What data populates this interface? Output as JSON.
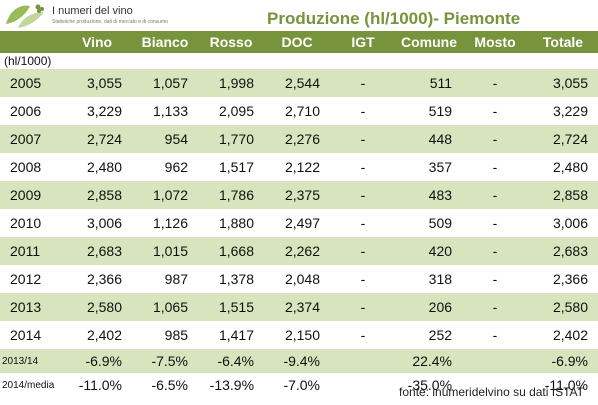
{
  "logo": {
    "name": "I numeri del vino",
    "tagline": "Statistiche produzione, dati di mercato e di consumo"
  },
  "title": "Produzione (hl/1000)- Piemonte",
  "columns": [
    "Vino",
    "Bianco",
    "Rosso",
    "DOC",
    "IGT",
    "Comune",
    "Mosto",
    "Totale"
  ],
  "unit": "(hl/1000)",
  "rows": [
    {
      "year": "2005",
      "vino": "3,055",
      "bianco": "1,057",
      "rosso": "1,998",
      "doc": "2,544",
      "igt": "-",
      "comune": "511",
      "mosto": "-",
      "totale": "3,055"
    },
    {
      "year": "2006",
      "vino": "3,229",
      "bianco": "1,133",
      "rosso": "2,095",
      "doc": "2,710",
      "igt": "-",
      "comune": "519",
      "mosto": "-",
      "totale": "3,229"
    },
    {
      "year": "2007",
      "vino": "2,724",
      "bianco": "954",
      "rosso": "1,770",
      "doc": "2,276",
      "igt": "-",
      "comune": "448",
      "mosto": "-",
      "totale": "2,724"
    },
    {
      "year": "2008",
      "vino": "2,480",
      "bianco": "962",
      "rosso": "1,517",
      "doc": "2,122",
      "igt": "-",
      "comune": "357",
      "mosto": "-",
      "totale": "2,480"
    },
    {
      "year": "2009",
      "vino": "2,858",
      "bianco": "1,072",
      "rosso": "1,786",
      "doc": "2,375",
      "igt": "-",
      "comune": "483",
      "mosto": "-",
      "totale": "2,858"
    },
    {
      "year": "2010",
      "vino": "3,006",
      "bianco": "1,126",
      "rosso": "1,880",
      "doc": "2,497",
      "igt": "-",
      "comune": "509",
      "mosto": "-",
      "totale": "3,006"
    },
    {
      "year": "2011",
      "vino": "2,683",
      "bianco": "1,015",
      "rosso": "1,668",
      "doc": "2,262",
      "igt": "-",
      "comune": "420",
      "mosto": "-",
      "totale": "2,683"
    },
    {
      "year": "2012",
      "vino": "2,366",
      "bianco": "987",
      "rosso": "1,378",
      "doc": "2,048",
      "igt": "-",
      "comune": "318",
      "mosto": "-",
      "totale": "2,366"
    },
    {
      "year": "2013",
      "vino": "2,580",
      "bianco": "1,065",
      "rosso": "1,515",
      "doc": "2,374",
      "igt": "-",
      "comune": "206",
      "mosto": "-",
      "totale": "2,580"
    },
    {
      "year": "2014",
      "vino": "2,402",
      "bianco": "985",
      "rosso": "1,417",
      "doc": "2,150",
      "igt": "-",
      "comune": "252",
      "mosto": "-",
      "totale": "2,402"
    }
  ],
  "changes": [
    {
      "label": "2013/14",
      "vino": "-6.9%",
      "bianco": "-7.5%",
      "rosso": "-6.4%",
      "doc": "-9.4%",
      "igt": "",
      "comune": "22.4%",
      "mosto": "",
      "totale": "-6.9%"
    },
    {
      "label": "2014/media",
      "vino": "-11.0%",
      "bianco": "-6.5%",
      "rosso": "-13.9%",
      "doc": "-7.0%",
      "igt": "",
      "comune": "-35.0%",
      "mosto": "",
      "totale": "-11.0%"
    }
  ],
  "source": "fonte: inumeridelvino su dati ISTAT",
  "colors": {
    "accent": "#77933c",
    "band": "#d7e4bd",
    "logo_leaf": "#9bbb59"
  }
}
